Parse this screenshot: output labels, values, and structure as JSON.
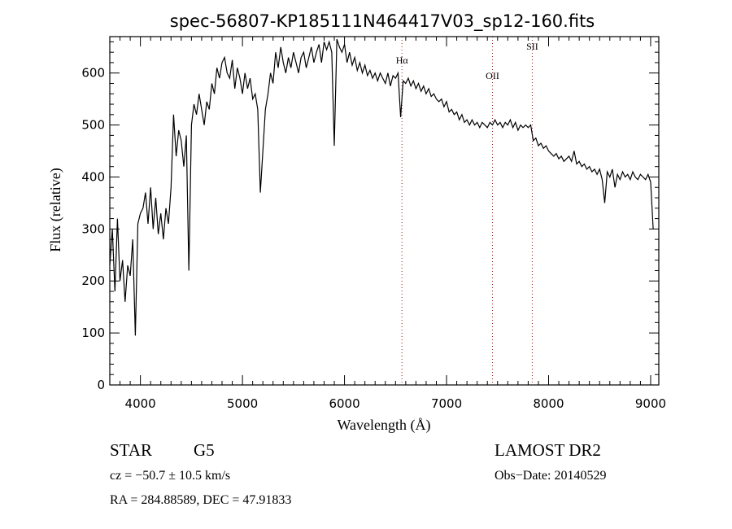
{
  "chart_data": {
    "type": "line",
    "title": "spec-56807-KP185111N464417V03_sp12-160.fits",
    "xlabel": "Wavelength (Å)",
    "ylabel": "Flux (relative)",
    "xlim": [
      3700,
      9080
    ],
    "ylim": [
      0,
      670
    ],
    "x_ticks": [
      4000,
      5000,
      6000,
      7000,
      8000,
      9000
    ],
    "x_tick_labels": [
      "4000",
      "5000",
      "6000",
      "7000",
      "8000",
      "9000"
    ],
    "y_ticks": [
      0,
      100,
      200,
      300,
      400,
      500,
      600
    ],
    "y_tick_labels": [
      "0",
      "100",
      "200",
      "300",
      "400",
      "500",
      "600"
    ],
    "x_minor_step": 100,
    "y_minor_step": 20,
    "grid": false,
    "series": [
      {
        "name": "spectrum",
        "x_start": 3700,
        "x_step": 25,
        "flux": [
          230,
          300,
          180,
          320,
          200,
          240,
          160,
          230,
          210,
          280,
          95,
          310,
          330,
          340,
          370,
          310,
          380,
          300,
          360,
          290,
          330,
          280,
          340,
          310,
          380,
          520,
          440,
          490,
          470,
          420,
          480,
          220,
          500,
          540,
          520,
          560,
          530,
          500,
          545,
          530,
          580,
          560,
          610,
          590,
          620,
          630,
          600,
          590,
          625,
          570,
          610,
          590,
          560,
          600,
          570,
          590,
          550,
          560,
          530,
          370,
          450,
          530,
          560,
          600,
          580,
          640,
          610,
          650,
          620,
          600,
          630,
          610,
          640,
          620,
          600,
          630,
          640,
          610,
          630,
          650,
          620,
          640,
          655,
          620,
          660,
          645,
          660,
          640,
          460,
          665,
          650,
          640,
          655,
          620,
          640,
          615,
          630,
          605,
          620,
          600,
          615,
          595,
          605,
          590,
          600,
          585,
          600,
          590,
          580,
          600,
          575,
          595,
          590,
          600,
          515,
          585,
          580,
          590,
          575,
          585,
          570,
          580,
          565,
          575,
          560,
          570,
          555,
          560,
          550,
          545,
          550,
          535,
          545,
          525,
          530,
          520,
          525,
          510,
          520,
          505,
          510,
          500,
          510,
          500,
          505,
          495,
          505,
          500,
          495,
          505,
          500,
          510,
          500,
          505,
          495,
          505,
          500,
          510,
          495,
          505,
          490,
          500,
          495,
          500,
          495,
          500,
          470,
          475,
          460,
          465,
          455,
          460,
          450,
          445,
          440,
          445,
          435,
          440,
          430,
          435,
          440,
          430,
          450,
          425,
          430,
          420,
          425,
          415,
          420,
          410,
          415,
          405,
          415,
          395,
          350,
          410,
          400,
          415,
          380,
          405,
          395,
          410,
          400,
          405,
          395,
          410,
          400,
          395,
          405,
          400,
          395,
          405,
          390,
          300
        ]
      }
    ],
    "line_markers": [
      {
        "label": "Hα",
        "wavelength": 6563
      },
      {
        "label": "OII",
        "wavelength": 7450
      },
      {
        "label": "SII",
        "wavelength": 7840
      }
    ],
    "colors": {
      "spectrum": "#000000",
      "markers": "#8b1a1a"
    }
  },
  "info": {
    "class": "STAR",
    "subclass": "G5",
    "cz": "cz = −50.7 ± 10.5 km/s",
    "coords": "RA = 284.88589, DEC =  47.91833",
    "survey": "LAMOST DR2",
    "obs_date": "Obs−Date: 20140529"
  }
}
